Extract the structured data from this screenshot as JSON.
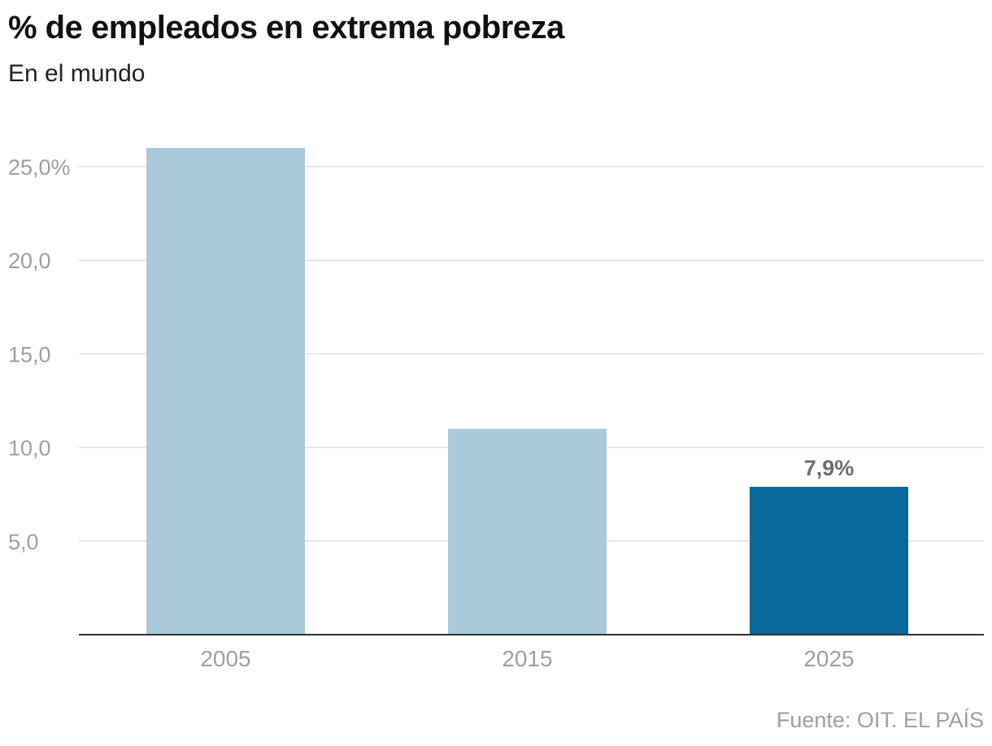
{
  "header": {
    "title": "% de empleados en extrema pobreza",
    "subtitle": "En el mundo"
  },
  "footer": {
    "source": "Fuente: OIT. EL PAÍS"
  },
  "chart_data": {
    "type": "bar",
    "title": "% de empleados en extrema pobreza",
    "subtitle": "En el mundo",
    "xlabel": "",
    "ylabel": "",
    "categories": [
      "2005",
      "2015",
      "2025"
    ],
    "values": [
      26.0,
      11.0,
      7.9
    ],
    "ylim": [
      0,
      26
    ],
    "yticks": [
      5,
      10,
      15,
      20,
      25
    ],
    "ytick_labels": [
      "5,0",
      "10,0",
      "15,0",
      "20,0",
      "25,0%"
    ],
    "data_labels": [
      null,
      null,
      "7,9%"
    ],
    "highlight_index": 2,
    "colors": {
      "bar": "#a8cadb",
      "highlight": "#08699b",
      "grid": "#e0e0e0",
      "axis": "#333333",
      "tick_text": "#a0a0a0",
      "data_label_text": "#6e6e6e"
    },
    "grid": true,
    "legend": "none"
  }
}
